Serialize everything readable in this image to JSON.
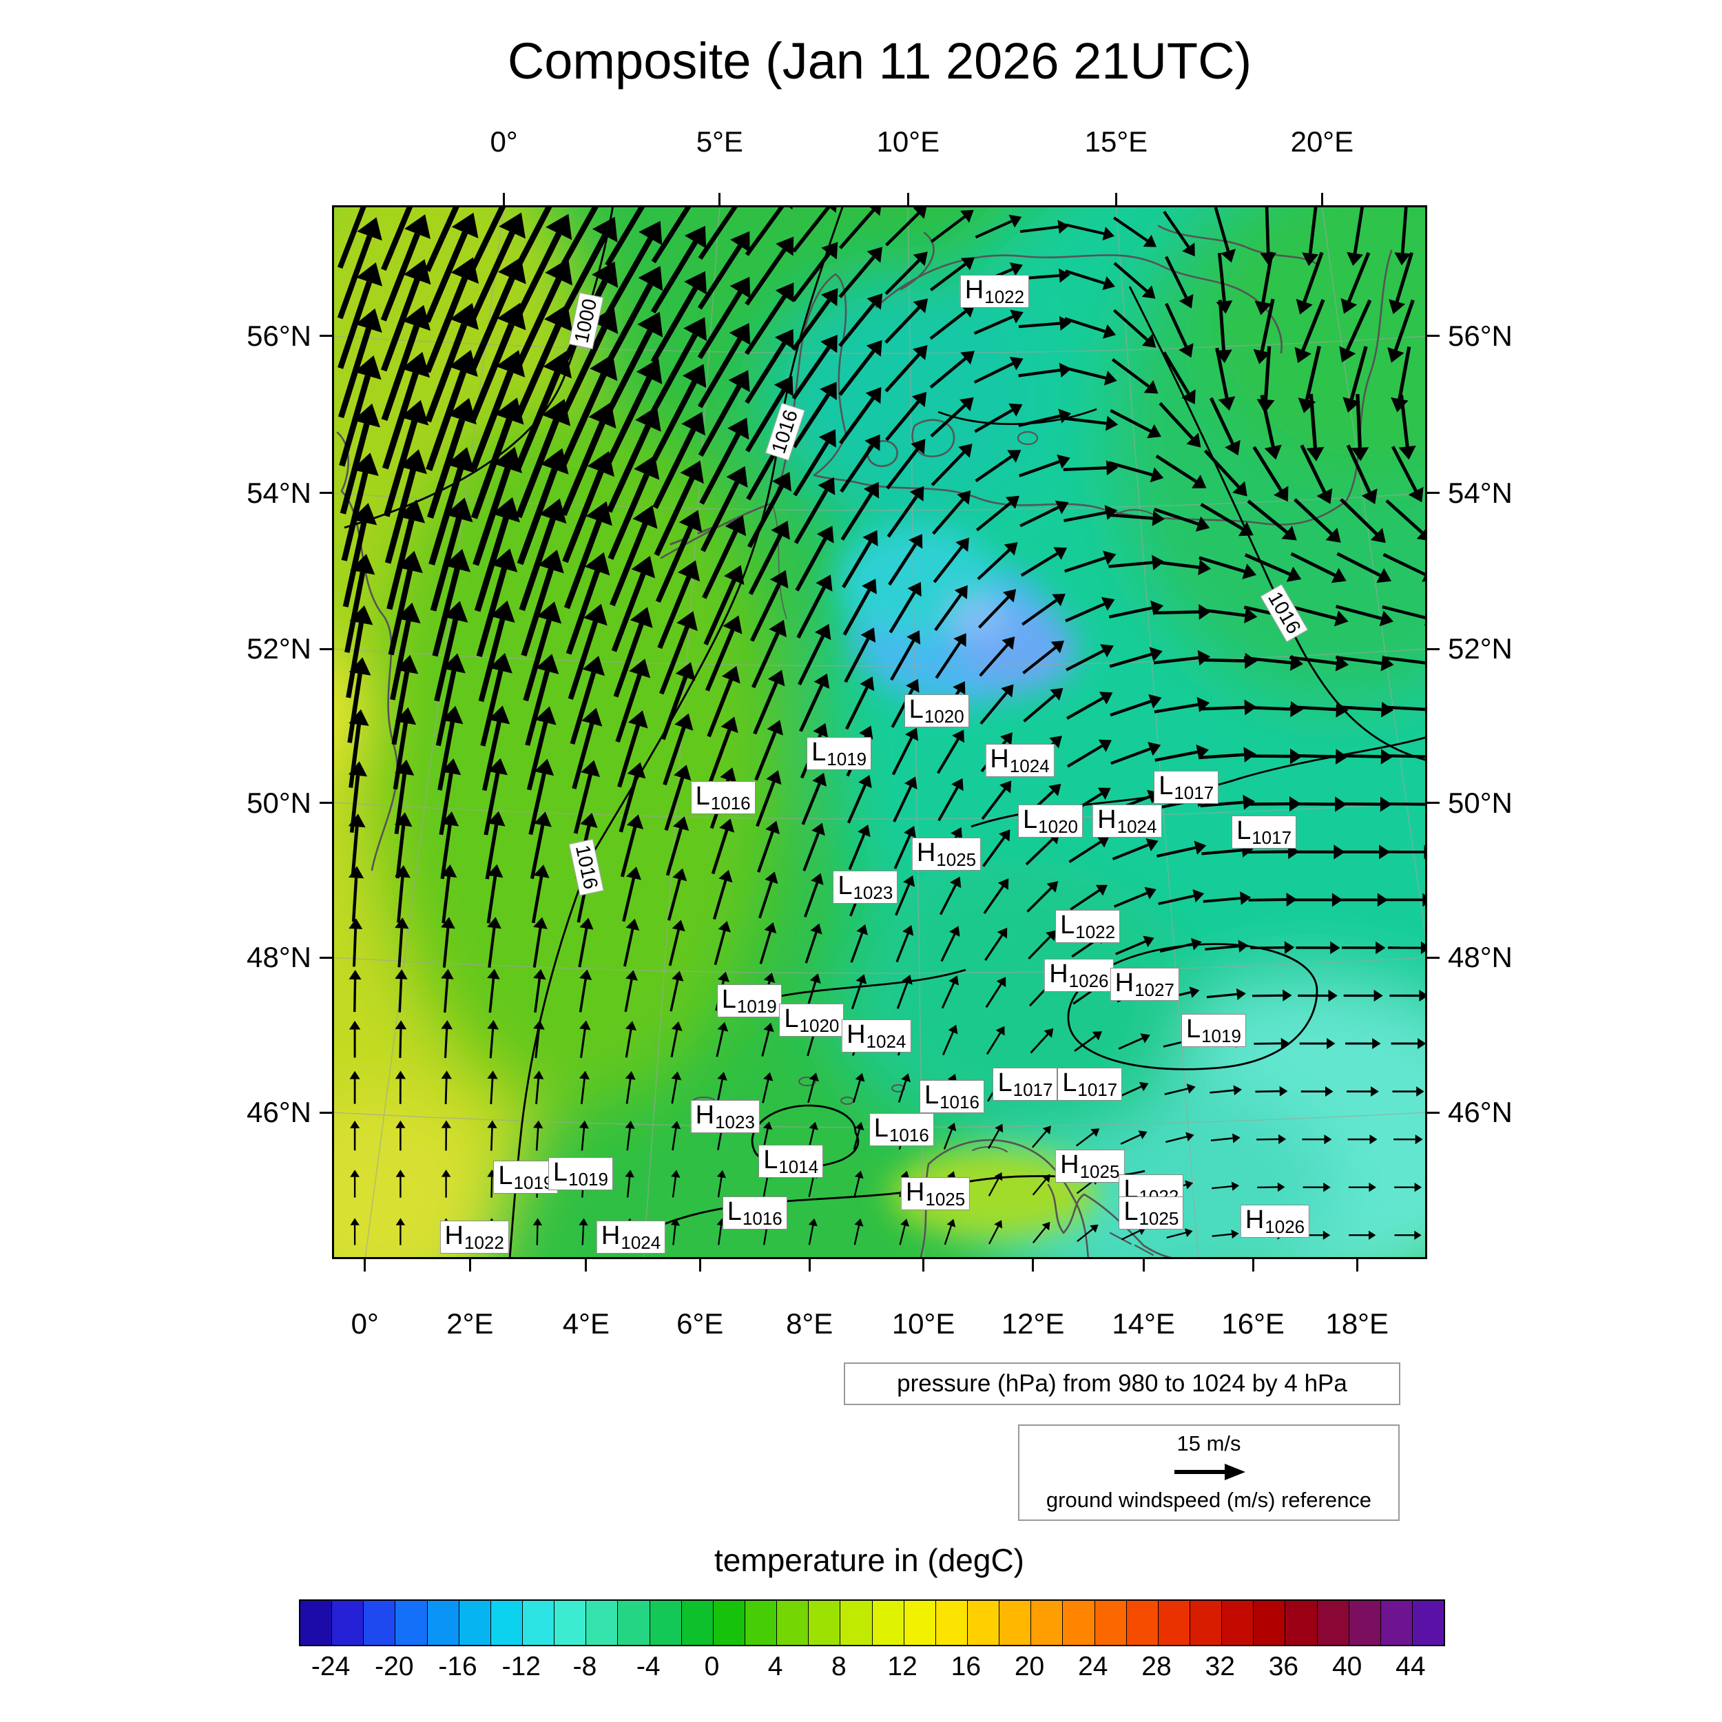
{
  "title": "Composite (Jan 11 2026 21UTC)",
  "pressure_caption": "pressure (hPa) from 980 to 1024 by 4 hPa",
  "wind_legend": {
    "speed_label": "15 m/s",
    "caption": "ground windspeed (m/s) reference"
  },
  "colorbar_title": "temperature in (degC)",
  "chart_data": {
    "type": "heatmap",
    "title": "Composite (Jan 11 2026 21UTC)",
    "field": "surface temperature (degC) with sea-level pressure contours and wind vectors",
    "axis": {
      "top": [
        {
          "label": "0°",
          "f": 0.157
        },
        {
          "label": "5°E",
          "f": 0.354
        },
        {
          "label": "10°E",
          "f": 0.526
        },
        {
          "label": "15°E",
          "f": 0.716
        },
        {
          "label": "20°E",
          "f": 0.904
        }
      ],
      "bottom": [
        {
          "label": "0°",
          "f": 0.03
        },
        {
          "label": "2°E",
          "f": 0.126
        },
        {
          "label": "4°E",
          "f": 0.232
        },
        {
          "label": "6°E",
          "f": 0.336
        },
        {
          "label": "8°E",
          "f": 0.436
        },
        {
          "label": "10°E",
          "f": 0.54
        },
        {
          "label": "12°E",
          "f": 0.64
        },
        {
          "label": "14°E",
          "f": 0.741
        },
        {
          "label": "16°E",
          "f": 0.841
        },
        {
          "label": "18°E",
          "f": 0.936
        }
      ],
      "left": [
        {
          "label": "56°N",
          "f": 0.124
        },
        {
          "label": "54°N",
          "f": 0.273
        },
        {
          "label": "52°N",
          "f": 0.421
        },
        {
          "label": "50°N",
          "f": 0.567
        },
        {
          "label": "48°N",
          "f": 0.714
        },
        {
          "label": "46°N",
          "f": 0.861
        }
      ],
      "right": [
        {
          "label": "56°N",
          "f": 0.124
        },
        {
          "label": "54°N",
          "f": 0.273
        },
        {
          "label": "52°N",
          "f": 0.421
        },
        {
          "label": "50°N",
          "f": 0.567
        },
        {
          "label": "48°N",
          "f": 0.714
        },
        {
          "label": "46°N",
          "f": 0.861
        }
      ]
    },
    "colorbar": {
      "title": "temperature in (degC)",
      "units": "degC",
      "value_range": [
        -26,
        46
      ],
      "step": 2,
      "tick_labels": [
        "-24",
        "-20",
        "-16",
        "-12",
        "-8",
        "-4",
        "0",
        "4",
        "8",
        "12",
        "16",
        "20",
        "24",
        "28",
        "32",
        "36",
        "40",
        "44"
      ],
      "segment_colors": [
        "#1c0ba8",
        "#2421d6",
        "#1e48f0",
        "#1470f8",
        "#0a94f6",
        "#06b4f2",
        "#0cd2f0",
        "#2ce4e4",
        "#3cecd0",
        "#34e4ac",
        "#24d684",
        "#14c858",
        "#0cc12c",
        "#16c30a",
        "#46cd06",
        "#74d704",
        "#9ce102",
        "#c0ea00",
        "#dff200",
        "#f2f200",
        "#fce400",
        "#ffcf00",
        "#ffb700",
        "#ff9e00",
        "#ff8400",
        "#fc6800",
        "#f64c00",
        "#ea3200",
        "#d81c00",
        "#c40a00",
        "#b00000",
        "#9c0014",
        "#8a0634",
        "#7c0e60",
        "#6e1490",
        "#5a12a6"
      ]
    },
    "pressure_contours": {
      "caption": "pressure (hPa) from 980 to 1024 by 4 hPa",
      "labeled_values": [
        "1000",
        "1016"
      ]
    },
    "wind": {
      "reference_speed": "15 m/s",
      "reference_caption": "ground windspeed (m/s) reference",
      "grid_cols": 24,
      "grid_rows": 22
    },
    "contour_labels": [
      {
        "v": "1000",
        "x": 0.232,
        "y": 0.11,
        "rot": -78
      },
      {
        "v": "1016",
        "x": 0.414,
        "y": 0.215,
        "rot": -72
      },
      {
        "v": "1016",
        "x": 0.869,
        "y": 0.387,
        "rot": 60
      },
      {
        "v": "1016",
        "x": 0.232,
        "y": 0.628,
        "rot": 78
      }
    ],
    "pressure_centers": [
      {
        "t": "H",
        "v": "1022",
        "x": 0.605,
        "y": 0.082
      },
      {
        "t": "L",
        "v": "1020",
        "x": 0.552,
        "y": 0.48
      },
      {
        "t": "L",
        "v": "1019",
        "x": 0.463,
        "y": 0.52
      },
      {
        "t": "H",
        "v": "1024",
        "x": 0.628,
        "y": 0.527
      },
      {
        "t": "L",
        "v": "1016",
        "x": 0.357,
        "y": 0.562
      },
      {
        "t": "L",
        "v": "1017",
        "x": 0.78,
        "y": 0.552
      },
      {
        "t": "L",
        "v": "1020",
        "x": 0.656,
        "y": 0.584
      },
      {
        "t": "H",
        "v": "1024",
        "x": 0.726,
        "y": 0.584
      },
      {
        "t": "L",
        "v": "1017",
        "x": 0.851,
        "y": 0.595
      },
      {
        "t": "H",
        "v": "1025",
        "x": 0.561,
        "y": 0.616
      },
      {
        "t": "L",
        "v": "1023",
        "x": 0.487,
        "y": 0.647
      },
      {
        "t": "L",
        "v": "1022",
        "x": 0.69,
        "y": 0.684
      },
      {
        "t": "H",
        "v": "1026",
        "x": 0.682,
        "y": 0.731
      },
      {
        "t": "H",
        "v": "1027",
        "x": 0.742,
        "y": 0.739
      },
      {
        "t": "L",
        "v": "1019",
        "x": 0.381,
        "y": 0.755
      },
      {
        "t": "L",
        "v": "1020",
        "x": 0.438,
        "y": 0.773
      },
      {
        "t": "H",
        "v": "1024",
        "x": 0.497,
        "y": 0.788
      },
      {
        "t": "L",
        "v": "1019",
        "x": 0.805,
        "y": 0.783
      },
      {
        "t": "L",
        "v": "1017",
        "x": 0.633,
        "y": 0.834
      },
      {
        "t": "L",
        "v": "1017",
        "x": 0.692,
        "y": 0.834
      },
      {
        "t": "L",
        "v": "1016",
        "x": 0.566,
        "y": 0.846
      },
      {
        "t": "H",
        "v": "1023",
        "x": 0.359,
        "y": 0.865
      },
      {
        "t": "L",
        "v": "1016",
        "x": 0.52,
        "y": 0.877
      },
      {
        "t": "L",
        "v": "1014",
        "x": 0.419,
        "y": 0.907
      },
      {
        "t": "L",
        "v": "1019",
        "x": 0.177,
        "y": 0.922
      },
      {
        "t": "L",
        "v": "1019",
        "x": 0.227,
        "y": 0.919
      },
      {
        "t": "H",
        "v": "1025",
        "x": 0.692,
        "y": 0.912
      },
      {
        "t": "L",
        "v": "1022",
        "x": 0.748,
        "y": 0.935
      },
      {
        "t": "H",
        "v": "1025",
        "x": 0.551,
        "y": 0.938
      },
      {
        "t": "L",
        "v": "1025",
        "x": 0.748,
        "y": 0.956
      },
      {
        "t": "L",
        "v": "1016",
        "x": 0.386,
        "y": 0.956
      },
      {
        "t": "H",
        "v": "1022",
        "x": 0.13,
        "y": 0.979
      },
      {
        "t": "H",
        "v": "1024",
        "x": 0.273,
        "y": 0.979
      },
      {
        "t": "H",
        "v": "1026",
        "x": 0.861,
        "y": 0.964
      }
    ]
  }
}
